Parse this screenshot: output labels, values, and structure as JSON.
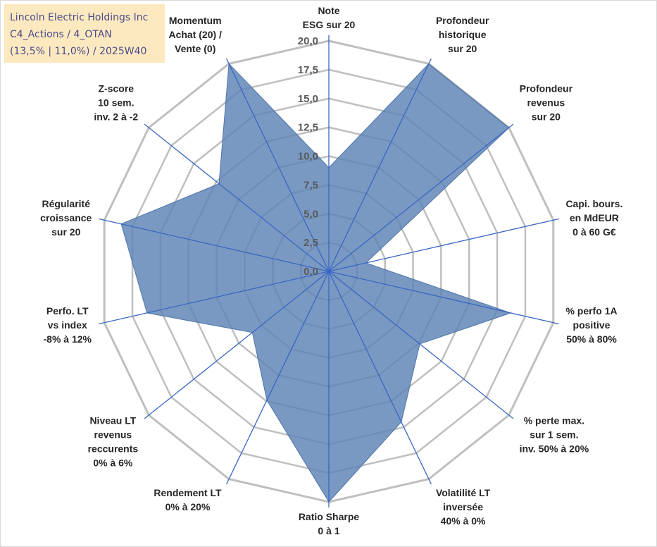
{
  "chart_data": {
    "type": "radar",
    "title_box": {
      "line1": "Lincoln Electric Holdings Inc",
      "line2": "C4_Actions / 4_OTAN",
      "line3": "(13,5% | 11,0%) / 2025W40"
    },
    "r_range": [
      0,
      20
    ],
    "ticks": [
      "0,0",
      "2,5",
      "5,0",
      "7,5",
      "10,0",
      "12,5",
      "15,0",
      "17,5",
      "20,0"
    ],
    "axes": [
      {
        "lines": [
          "Note",
          "ESG sur 20"
        ],
        "value": 9.0
      },
      {
        "lines": [
          "Profondeur",
          "historique",
          "sur 20"
        ],
        "value": 20.0
      },
      {
        "lines": [
          "Profondeur",
          "revenus",
          "sur 20"
        ],
        "value": 20.0
      },
      {
        "lines": [
          "Capi. bours.",
          "en MdEUR",
          "0 à 60 G€"
        ],
        "value": 3.3
      },
      {
        "lines": [
          "% perfo 1A",
          "positive",
          "50% à 80%"
        ],
        "value": 16.2
      },
      {
        "lines": [
          "% perte max.",
          "sur 1 sem.",
          "inv. 50% à 20%"
        ],
        "value": 10.1
      },
      {
        "lines": [
          "Volatilité LT",
          "inversée",
          "40% à 0%"
        ],
        "value": 14.5
      },
      {
        "lines": [
          "Ratio Sharpe",
          "0 à 1"
        ],
        "value": 20.0
      },
      {
        "lines": [
          "Rendement LT",
          "0% à 20%"
        ],
        "value": 12.4
      },
      {
        "lines": [
          "Niveau LT",
          "revenus",
          "reccurents"
        ],
        "extra_line": "0% à 6%",
        "value": 8.5
      },
      {
        "lines": [
          "Perfo. LT",
          "vs index",
          "-8% à 12%"
        ],
        "value": 16.2
      },
      {
        "lines": [
          "Régularité",
          "croissance",
          "sur 20"
        ],
        "value": 18.5
      },
      {
        "lines": [
          "Z-score",
          "10 sem.",
          "inv. 2 à -2"
        ],
        "value": 12.2
      },
      {
        "lines": [
          "Momentum",
          "Achat (20) /",
          "Vente (0)"
        ],
        "value": 20.0
      }
    ],
    "series": [
      {
        "name": "Lincoln Electric Holdings Inc"
      }
    ],
    "colors": {
      "fill": "#5b82b5",
      "spoke": "#3a66c4",
      "grid": "#bfbfbf",
      "title_bg": "#fde9c0",
      "title_text": "#4a4a8a"
    }
  }
}
